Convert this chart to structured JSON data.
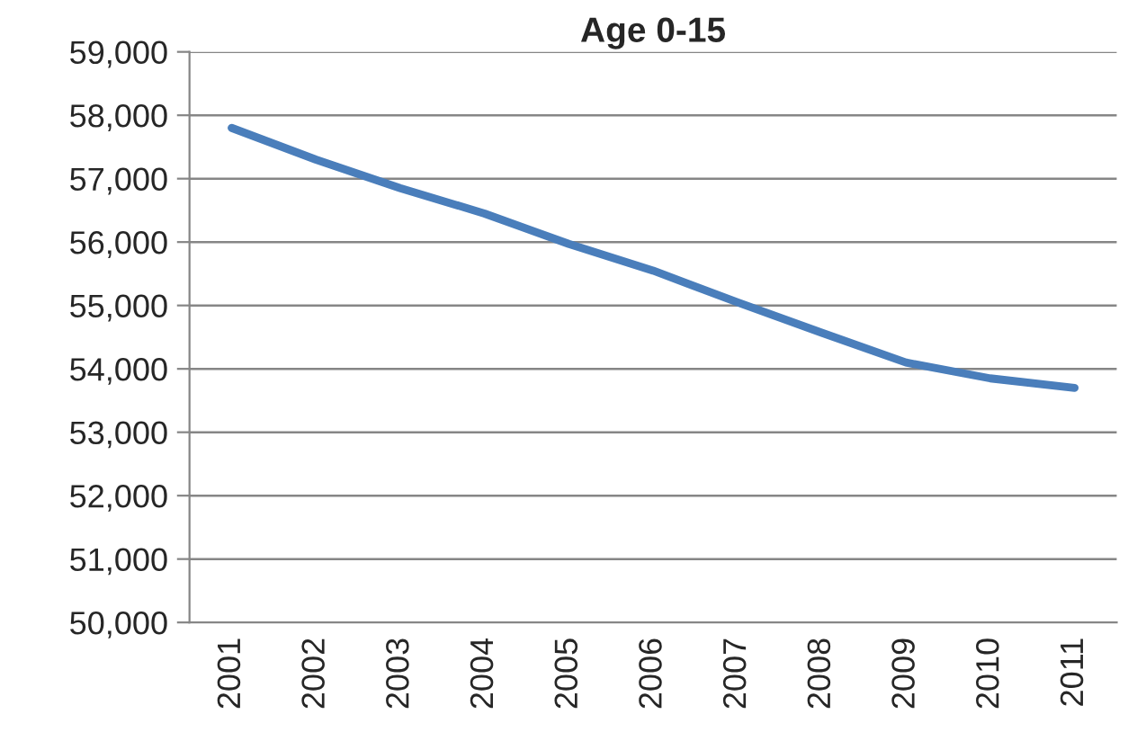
{
  "chart_data": {
    "type": "line",
    "title": "Age 0-15",
    "categories": [
      "2001",
      "2002",
      "2003",
      "2004",
      "2005",
      "2006",
      "2007",
      "2008",
      "2009",
      "2010",
      "2011"
    ],
    "series": [
      {
        "color": "#4a7ebb",
        "values": [
          57800,
          57300,
          56850,
          56450,
          55970,
          55550,
          55050,
          54570,
          54100,
          53850,
          53700
        ]
      }
    ],
    "ylim": [
      50000,
      59000
    ],
    "yticks": [
      {
        "value": 50000,
        "label": "50,000"
      },
      {
        "value": 51000,
        "label": "51,000"
      },
      {
        "value": 52000,
        "label": "52,000"
      },
      {
        "value": 53000,
        "label": "53,000"
      },
      {
        "value": 54000,
        "label": "54,000"
      },
      {
        "value": 55000,
        "label": "55,000"
      },
      {
        "value": 56000,
        "label": "56,000"
      },
      {
        "value": 57000,
        "label": "57,000"
      },
      {
        "value": 58000,
        "label": "58,000"
      },
      {
        "value": 59000,
        "label": "59,000"
      }
    ],
    "grid": "y",
    "legend": false,
    "marker": "none",
    "line_style": "solid"
  }
}
